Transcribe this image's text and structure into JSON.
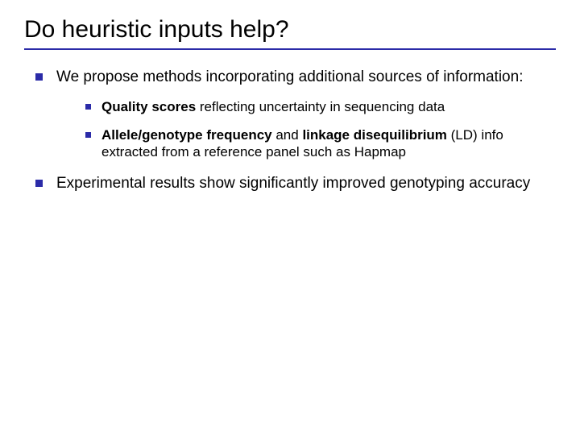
{
  "slide": {
    "title": "Do heuristic inputs help?",
    "rule_color": "#2b2ba8",
    "bullet_color": "#2b2ba8",
    "background_color": "#ffffff",
    "title_fontsize": 30,
    "body_fontsize_lvl1": 19,
    "body_fontsize_lvl2": 17,
    "bullets": [
      {
        "text": "We propose methods incorporating additional sources of information:",
        "sub": [
          {
            "bold1": "Quality scores",
            "rest1": " reflecting uncertainty in sequencing data"
          },
          {
            "bold1": "Allele/genotype frequency",
            "mid": " and ",
            "bold2": "linkage disequilibrium",
            "rest1": " (LD) info extracted from a reference panel such as Hapmap"
          }
        ]
      },
      {
        "text": "Experimental results show significantly improved genotyping accuracy"
      }
    ]
  }
}
